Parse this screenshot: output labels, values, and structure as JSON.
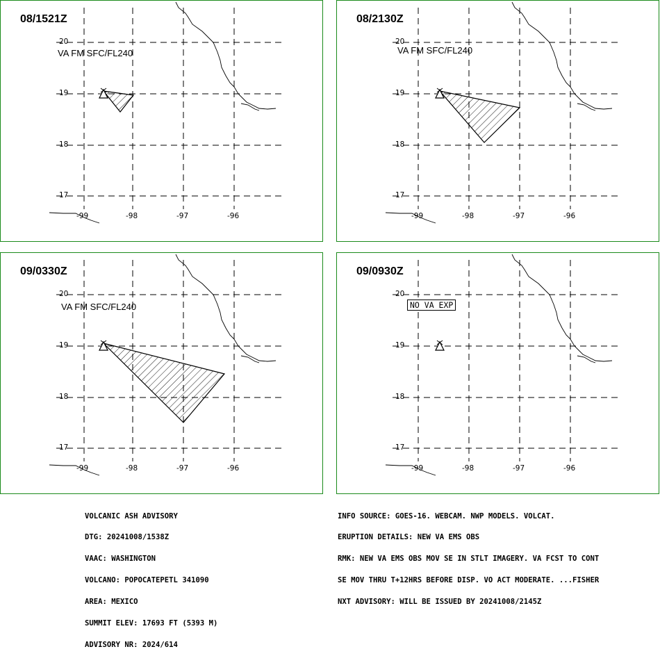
{
  "panels": [
    {
      "time": "08/1521Z",
      "va_label": "VA FM SFC/FL240"
    },
    {
      "time": "08/2130Z",
      "va_label": "VA FM SFC/FL240"
    },
    {
      "time": "09/0330Z",
      "va_label": "VA FM SFC/FL240"
    },
    {
      "time": "09/0930Z",
      "va_label": "NO VA EXP"
    }
  ],
  "lat_labels": [
    "20",
    "19",
    "18",
    "17"
  ],
  "lon_labels": [
    "-99",
    "-98",
    "-97",
    "-96"
  ],
  "advisory_left": [
    "VOLCANIC ASH ADVISORY",
    "DTG: 20241008/1538Z",
    "VAAC: WASHINGTON",
    "VOLCANO: POPOCATEPETL 341090",
    "AREA: MEXICO",
    "SUMMIT ELEV: 17693 FT (5393 M)",
    "ADVISORY NR: 2024/614"
  ],
  "advisory_right": [
    "INFO SOURCE: GOES-16. WEBCAM. NWP MODELS. VOLCAT.",
    "ERUPTION DETAILS: NEW VA EMS OBS",
    "RMK: NEW VA EMS OBS MOV SE IN STLT IMAGERY. VA FCST TO CONT",
    "SE MOV THRU T+12HRS BEFORE DISP. VO ACT MODERATE. ...FISHER",
    "NXT ADVISORY: WILL BE ISSUED BY 20241008/2145Z"
  ]
}
